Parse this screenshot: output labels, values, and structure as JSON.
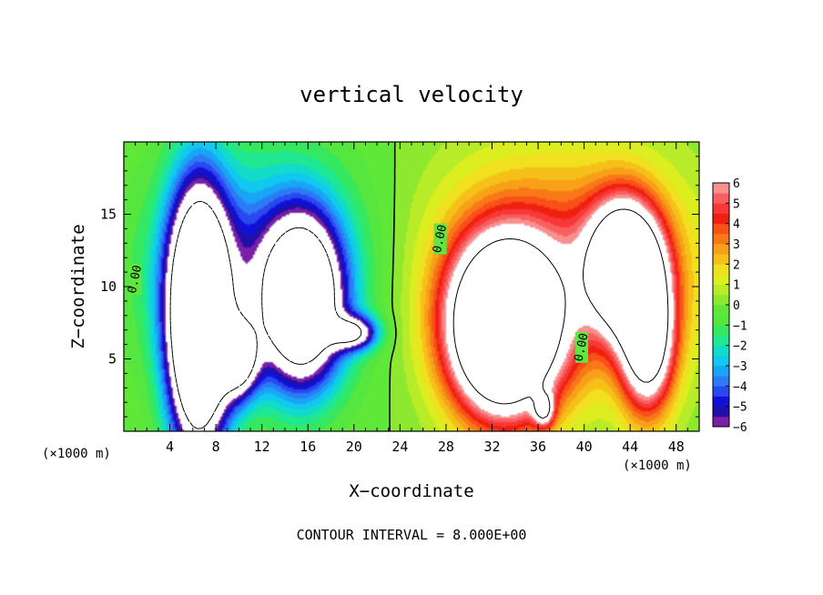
{
  "chart_data": {
    "type": "heatmap",
    "title": "vertical velocity",
    "xlabel": "X−coordinate",
    "ylabel": "Z−coordinate",
    "x_unit_left": "(×1000 m)",
    "x_unit_right": "(×1000 m)",
    "footer": "CONTOUR INTERVAL = 8.000E+00",
    "xlim": [
      0,
      50
    ],
    "ylim": [
      0,
      20
    ],
    "x_ticks": [
      4,
      8,
      12,
      16,
      20,
      24,
      28,
      32,
      36,
      40,
      44,
      48
    ],
    "y_ticks": [
      5,
      10,
      15
    ],
    "colorbar": {
      "min": -6,
      "max": 6,
      "ticks": [
        "6",
        "5",
        "4",
        "3",
        "2",
        "1",
        "0",
        "−1",
        "−2",
        "−3",
        "−4",
        "−5",
        "−6"
      ],
      "levels": [
        -6,
        -5.5,
        -5,
        -4.5,
        -4,
        -3.5,
        -3,
        -2.5,
        -2,
        -1.5,
        -1,
        -0.5,
        0,
        0.5,
        1,
        1.5,
        2,
        2.5,
        3,
        3.5,
        4,
        4.5,
        5,
        5.5,
        6
      ]
    },
    "contour_labels": [
      {
        "text": "0.00",
        "x": 1.0,
        "z": 10.5
      },
      {
        "text": "0.00",
        "x": 27.5,
        "z": 13.3
      },
      {
        "text": "0.00",
        "x": 39.8,
        "z": 5.8
      }
    ],
    "features": [
      {
        "kind": "downdraft",
        "x": 6.5,
        "z": 7.5,
        "sx": 1.8,
        "sz": 6.0,
        "w": -16
      },
      {
        "kind": "downdraft",
        "x": 15.5,
        "z": 9.0,
        "sx": 2.3,
        "sz": 3.8,
        "w": -12
      },
      {
        "kind": "downdraft",
        "x": 20.0,
        "z": 6.8,
        "sx": 1.4,
        "sz": 0.8,
        "w": -7
      },
      {
        "kind": "downdraft",
        "x": 10.0,
        "z": 5.0,
        "sx": 1.2,
        "sz": 1.8,
        "w": -8
      },
      {
        "kind": "updraft",
        "x": 33.0,
        "z": 7.0,
        "sx": 3.2,
        "sz": 4.0,
        "w": 16
      },
      {
        "kind": "updraft",
        "x": 43.5,
        "z": 11.5,
        "sx": 2.1,
        "sz": 3.0,
        "w": 12
      },
      {
        "kind": "updraft",
        "x": 45.5,
        "z": 6.5,
        "sx": 1.6,
        "sz": 3.5,
        "w": 10
      },
      {
        "kind": "updraft",
        "x": 36.5,
        "z": 1.5,
        "sx": 0.6,
        "sz": 0.8,
        "w": 6
      }
    ]
  }
}
